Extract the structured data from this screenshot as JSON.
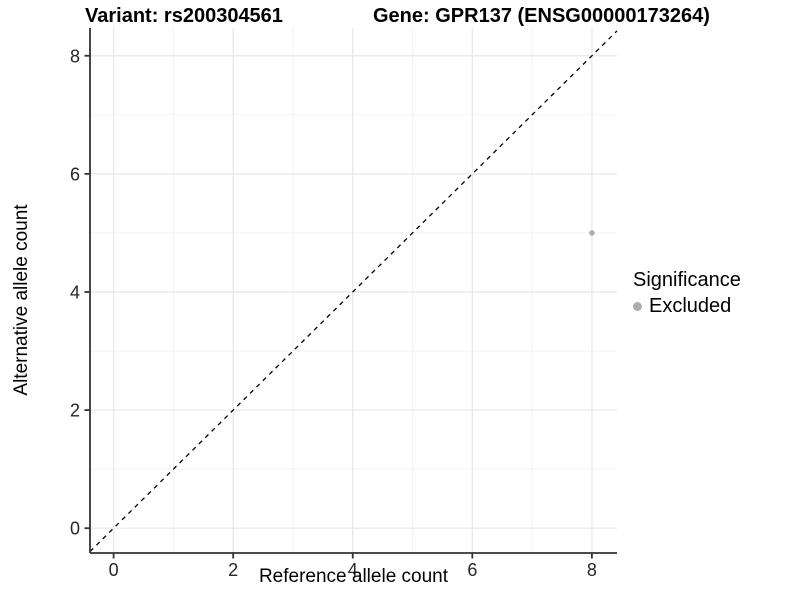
{
  "header": {
    "variant_title": "Variant: rs200304561",
    "gene_title": "Gene: GPR137 (ENSG00000173264)"
  },
  "legend": {
    "title": "Significance",
    "items": [
      {
        "label": "Excluded",
        "color": "#aeaeae"
      }
    ]
  },
  "chart_data": {
    "type": "scatter",
    "title": "Variant: rs200304561 — Gene: GPR137 (ENSG00000173264)",
    "xlabel": "Reference allele count",
    "ylabel": "Alternative allele count",
    "xlim": [
      -0.395,
      8.42
    ],
    "ylim": [
      -0.42,
      8.47
    ],
    "x_ticks": [
      0,
      2,
      4,
      6,
      8
    ],
    "y_ticks": [
      0,
      2,
      4,
      6,
      8
    ],
    "x_minor_ticks": [
      1,
      3,
      5,
      7
    ],
    "y_minor_ticks": [
      1,
      3,
      5,
      7
    ],
    "grid": "major+minor",
    "legend_position": "right",
    "series": [
      {
        "name": "Excluded",
        "color": "#aeaeae",
        "points": [
          {
            "x": 8,
            "y": 5
          }
        ]
      }
    ],
    "reference_line": {
      "kind": "identity",
      "equation": "y = x",
      "style": "dashed",
      "color": "#000000"
    }
  },
  "colors": {
    "background": "#ffffff",
    "grid_major": "#e7e7e7",
    "grid_minor": "#f3f3f3",
    "axis_line": "#333333",
    "tick_mark": "#333333",
    "tick_text": "#262626",
    "title_text": "#000000",
    "point": "#aeaeae"
  }
}
